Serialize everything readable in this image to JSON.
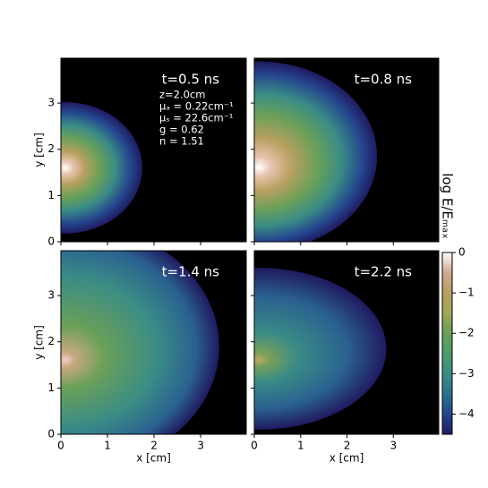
{
  "chart_data": [
    {
      "type": "heatmap",
      "annotation": "t=0.5 ns",
      "parameters": [
        "z=2.0cm",
        "μₐ = 0.22cm⁻¹",
        "μₛ = 22.6cm⁻¹",
        "g = 0.62",
        "n = 1.51"
      ],
      "ylabel": "y [cm]",
      "xlim": [
        0,
        3.98
      ],
      "ylim": [
        0,
        3.97
      ],
      "yticks": [
        0,
        1,
        2,
        3
      ]
    },
    {
      "type": "heatmap",
      "annotation": "t=0.8 ns",
      "xlim": [
        0,
        3.98
      ],
      "ylim": [
        0,
        3.97
      ]
    },
    {
      "type": "heatmap",
      "annotation": "t=1.4 ns",
      "xlabel": "x [cm]",
      "ylabel": "y [cm]",
      "xlim": [
        0,
        3.98
      ],
      "ylim": [
        0,
        3.97
      ],
      "xticks": [
        0,
        1,
        2,
        3
      ],
      "yticks": [
        0,
        1,
        2,
        3
      ]
    },
    {
      "type": "heatmap",
      "annotation": "t=2.2 ns",
      "xlabel": "x [cm]",
      "xlim": [
        0,
        3.98
      ],
      "ylim": [
        0,
        3.97
      ],
      "xticks": [
        0,
        1,
        2,
        3
      ]
    },
    {
      "type": "colorbar",
      "label": "log E/Eₘₐₓ",
      "clim": [
        -4.5,
        0
      ],
      "ticks": [
        0,
        {
          "value": -1,
          "label": "−1"
        },
        {
          "value": -2,
          "label": "−2"
        },
        {
          "value": -3,
          "label": "−3"
        },
        {
          "value": -4,
          "label": "−4"
        }
      ]
    }
  ]
}
